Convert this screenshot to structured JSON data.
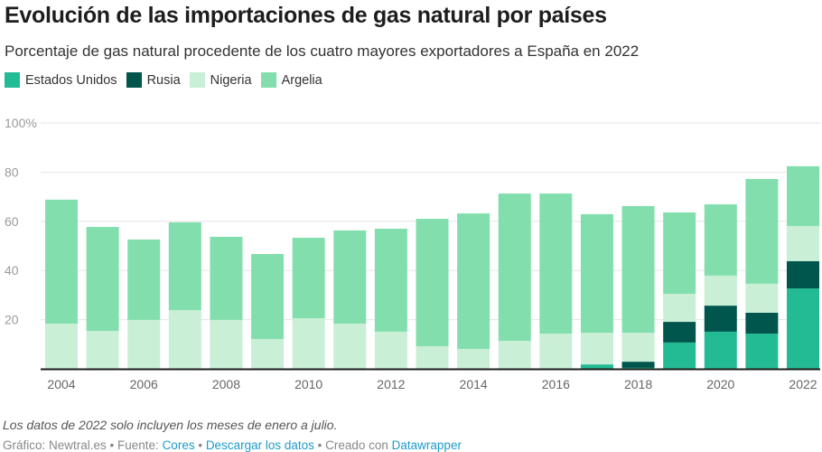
{
  "chart_data": {
    "type": "bar",
    "stacked": true,
    "title": "Evolución de las importaciones de gas natural por países",
    "subtitle": "Porcentaje de gas natural procedente de los cuatro mayores exportadores a España en 2022",
    "xlabel": "",
    "ylabel": "",
    "ylim": [
      0,
      100
    ],
    "grid": true,
    "legend_position": "top-left",
    "y_ticks": [
      "20",
      "40",
      "60",
      "80",
      "100%"
    ],
    "y_tick_values": [
      20,
      40,
      60,
      80,
      100
    ],
    "x_tick_labels": [
      "2004",
      "2006",
      "2008",
      "2010",
      "2012",
      "2014",
      "2016",
      "2018",
      "2020",
      "2022"
    ],
    "categories": [
      "2004",
      "2005",
      "2006",
      "2007",
      "2008",
      "2009",
      "2010",
      "2011",
      "2012",
      "2013",
      "2014",
      "2015",
      "2016",
      "2017",
      "2018",
      "2019",
      "2020",
      "2021",
      "2022"
    ],
    "series": [
      {
        "name": "Estados Unidos",
        "color": "#23bb93",
        "values": [
          0,
          0,
          0,
          0,
          0,
          0,
          0,
          0,
          0,
          0,
          0,
          0,
          0,
          1.8,
          0.4,
          10.7,
          15.1,
          14.3,
          32.7
        ]
      },
      {
        "name": "Rusia",
        "color": "#00564d",
        "values": [
          0,
          0,
          0,
          0,
          0,
          0,
          0,
          0,
          0,
          0,
          0,
          0,
          0,
          0,
          2.5,
          8.4,
          10.6,
          8.5,
          11.1
        ]
      },
      {
        "name": "Nigeria",
        "color": "#c9efd6",
        "values": [
          18.4,
          15.4,
          19.9,
          23.9,
          19.9,
          12.1,
          20.6,
          18.4,
          15.1,
          9.2,
          8.1,
          11.4,
          14.3,
          12.9,
          11.8,
          11.4,
          12.2,
          11.8,
          14.3
        ]
      },
      {
        "name": "Argelia",
        "color": "#82dfad",
        "values": [
          50.4,
          42.3,
          32.7,
          35.7,
          33.8,
          34.6,
          32.7,
          37.9,
          41.9,
          51.8,
          55.1,
          59.9,
          57.0,
          48.2,
          51.5,
          33.1,
          29.0,
          42.6,
          24.3
        ]
      }
    ]
  },
  "note": "Los datos de 2022 solo incluyen los meses de enero a julio.",
  "footer": {
    "graphic": "Gráfico: Newtral.es",
    "sep1": " • Fuente: ",
    "source": "Cores",
    "sep2": " • ",
    "download": "Descargar los datos",
    "sep3": " • Creado con ",
    "tool": "Datawrapper"
  }
}
